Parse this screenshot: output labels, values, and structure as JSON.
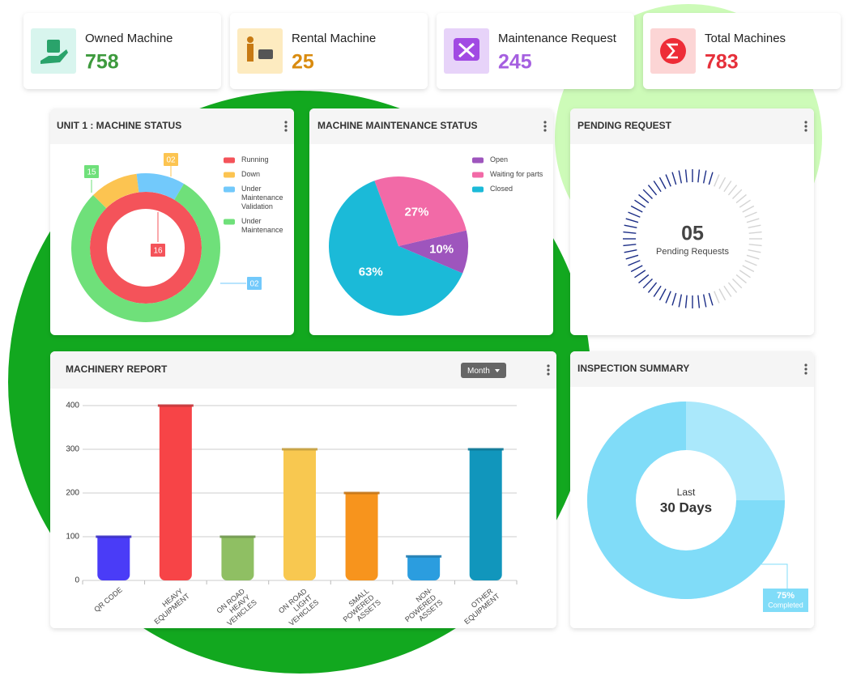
{
  "stats": [
    {
      "label": "Owned Machine",
      "value": 758,
      "color": "#3d9a3d"
    },
    {
      "label": "Rental Machine",
      "value": 25,
      "color": "#d98b0f"
    },
    {
      "label": "Maintenance Request",
      "value": 245,
      "color": "#a55fe0"
    },
    {
      "label": "Total Machines",
      "value": 783,
      "color": "#e6303a"
    }
  ],
  "chart_data": [
    {
      "type": "nested-donut",
      "title": "UNIT 1 : MACHINE STATUS",
      "categories": [
        "Running",
        "Down",
        "Under Maintenance Validation",
        "Under Maintenance"
      ],
      "values": [
        16,
        2,
        2,
        15
      ],
      "value_labels": [
        "16",
        "02",
        "02",
        "15"
      ],
      "colors": [
        "#f4535a",
        "#fcc451",
        "#72c9fb",
        "#6fe07a"
      ]
    },
    {
      "type": "pie",
      "title": "MACHINE MAINTENANCE STATUS",
      "categories": [
        "Open",
        "Waiting for parts",
        "Closed"
      ],
      "values": [
        10,
        27,
        63
      ],
      "value_labels": [
        "10%",
        "27%",
        "63%"
      ],
      "colors": [
        "#9e55bd",
        "#f26aa7",
        "#1bbad8"
      ]
    },
    {
      "type": "bar",
      "title": "MACHINERY REPORT",
      "control": "Month",
      "categories": [
        "QR CODE",
        "HEAVY EQUIPMENT",
        "ON ROAD HEAVY VEHICLES",
        "ON ROAD LIGHT VEHICLES",
        "SMALL POWERED ASSETS",
        "NON-POWERED ASSETS",
        "OTHER EQUIPMENT"
      ],
      "values": [
        100,
        400,
        100,
        300,
        200,
        55,
        300
      ],
      "colors": [
        "#4a3cf7",
        "#f74447",
        "#8fbf63",
        "#f8c850",
        "#f7941d",
        "#2b9ddf",
        "#1196bc"
      ],
      "ylim": [
        0,
        400
      ],
      "yticks": [
        0,
        100,
        200,
        300,
        400
      ],
      "grid": true
    },
    {
      "type": "donut",
      "title": "INSPECTION SUMMARY",
      "center_lines": [
        "Last",
        "30 Days"
      ],
      "categories": [
        "Completed"
      ],
      "values": [
        75
      ],
      "value_labels": [
        "75%"
      ],
      "color": "#80dcf8",
      "track_color": "#aae8fb"
    }
  ],
  "pending": {
    "title": "PENDING REQUEST",
    "count": "05",
    "label": "Pending Requests"
  }
}
